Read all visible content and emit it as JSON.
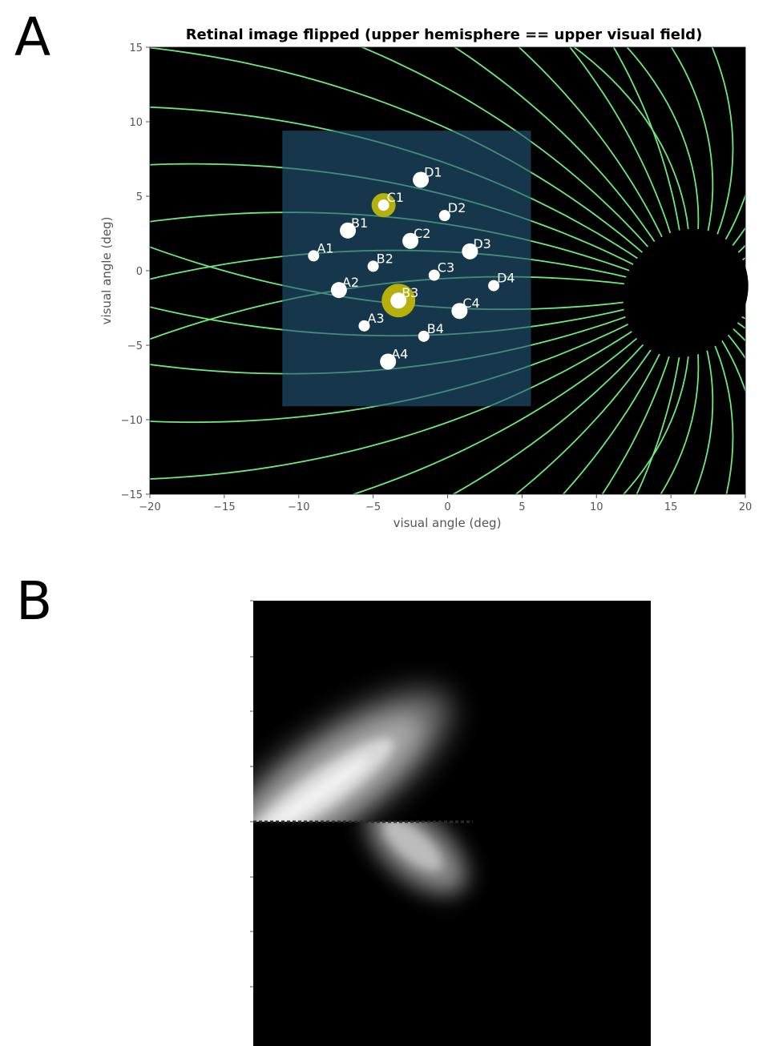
{
  "panels": {
    "a_label": "A",
    "b_label": "B"
  },
  "chart_data": [
    {
      "type": "scatter",
      "title": "Retinal image flipped (upper hemisphere == upper visual field)",
      "xlabel": "visual angle (deg)",
      "ylabel": "visual angle (deg)",
      "xlim": [
        -20,
        20
      ],
      "ylim": [
        -15,
        15
      ],
      "xticks": [
        -20,
        -15,
        -10,
        -5,
        0,
        5,
        10,
        15,
        20
      ],
      "yticks": [
        -15,
        -10,
        -5,
        0,
        5,
        10,
        15
      ],
      "xtick_labels": [
        "−20",
        "−15",
        "−10",
        "−5",
        "0",
        "5",
        "10",
        "15",
        "20"
      ],
      "ytick_labels": [
        "−15",
        "−10",
        "−5",
        "0",
        "5",
        "10",
        "15"
      ],
      "background": "#000000",
      "axon_color": "#6ee87a",
      "optic_disc": {
        "center": [
          16,
          -1.5
        ],
        "radius_x": 4,
        "radius_y": 4.5
      },
      "rectangle": {
        "x0": -11.1,
        "x1": 5.6,
        "y0": -9.1,
        "y1": 9.4,
        "color": "#24577a"
      },
      "highlight_color": "#b5b00c",
      "electrodes": [
        {
          "label": "A1",
          "x": -9.0,
          "y": 1.0,
          "size": 7
        },
        {
          "label": "B1",
          "x": -6.7,
          "y": 2.7,
          "size": 10,
          "highlight": false
        },
        {
          "label": "C1",
          "x": -4.3,
          "y": 4.4,
          "size": 7,
          "highlight": true
        },
        {
          "label": "D1",
          "x": -1.8,
          "y": 6.1,
          "size": 10
        },
        {
          "label": "A2",
          "x": -7.3,
          "y": -1.3,
          "size": 10
        },
        {
          "label": "B2",
          "x": -5.0,
          "y": 0.3,
          "size": 7
        },
        {
          "label": "C2",
          "x": -2.5,
          "y": 2.0,
          "size": 10
        },
        {
          "label": "D2",
          "x": -0.2,
          "y": 3.7,
          "size": 7
        },
        {
          "label": "A3",
          "x": -5.6,
          "y": -3.7,
          "size": 7
        },
        {
          "label": "B3",
          "x": -3.3,
          "y": -2.0,
          "size": 10,
          "highlight": true
        },
        {
          "label": "C3",
          "x": -0.9,
          "y": -0.3,
          "size": 7
        },
        {
          "label": "D3",
          "x": 1.5,
          "y": 1.3,
          "size": 10
        },
        {
          "label": "A4",
          "x": -4.0,
          "y": -6.1,
          "size": 10
        },
        {
          "label": "B4",
          "x": -1.6,
          "y": -4.4,
          "size": 7
        },
        {
          "label": "C4",
          "x": 0.8,
          "y": -2.7,
          "size": 10
        },
        {
          "label": "D4",
          "x": 3.1,
          "y": -1.0,
          "size": 7
        }
      ]
    },
    {
      "type": "heatmap",
      "description_colormap": "gray",
      "background": "#000000"
    }
  ]
}
